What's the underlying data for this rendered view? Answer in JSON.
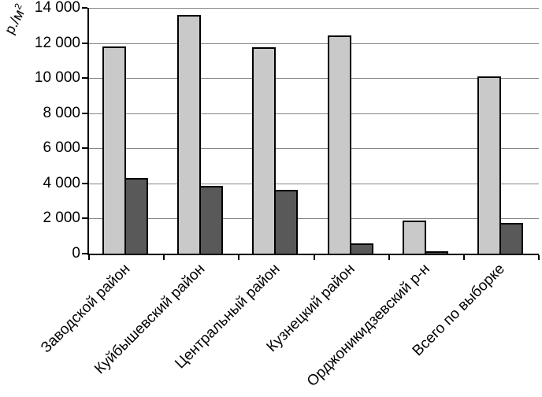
{
  "figure": {
    "background": "#ffffff"
  },
  "chart_data": {
    "type": "bar",
    "title": "",
    "y_axis_title": "р./м²",
    "y_axis_title_base": "р./м",
    "y_axis_title_sup": "2",
    "categories": [
      "Заводской район",
      "Куйбышевский район",
      "Центральный район",
      "Кузнецкий район",
      "Орджоникидзевский р-н",
      "Всего по выборке"
    ],
    "series": [
      {
        "name": "series_light",
        "color": "#c9c9c9",
        "values": [
          11800,
          13600,
          11750,
          12450,
          1900,
          10100
        ]
      },
      {
        "name": "series_dark",
        "color": "#595959",
        "values": [
          4300,
          3850,
          3650,
          600,
          150,
          1750
        ]
      }
    ],
    "ylim": [
      0,
      14000
    ],
    "ytick_step": 2000,
    "ytick_labels": [
      "0",
      "2 000",
      "4 000",
      "6 000",
      "8 000",
      "10 000",
      "12 000",
      "14 000"
    ],
    "grid": true,
    "grid_color": "#878787",
    "axis_color": "#000000",
    "bar_border_color": "#000000",
    "legend": false
  }
}
